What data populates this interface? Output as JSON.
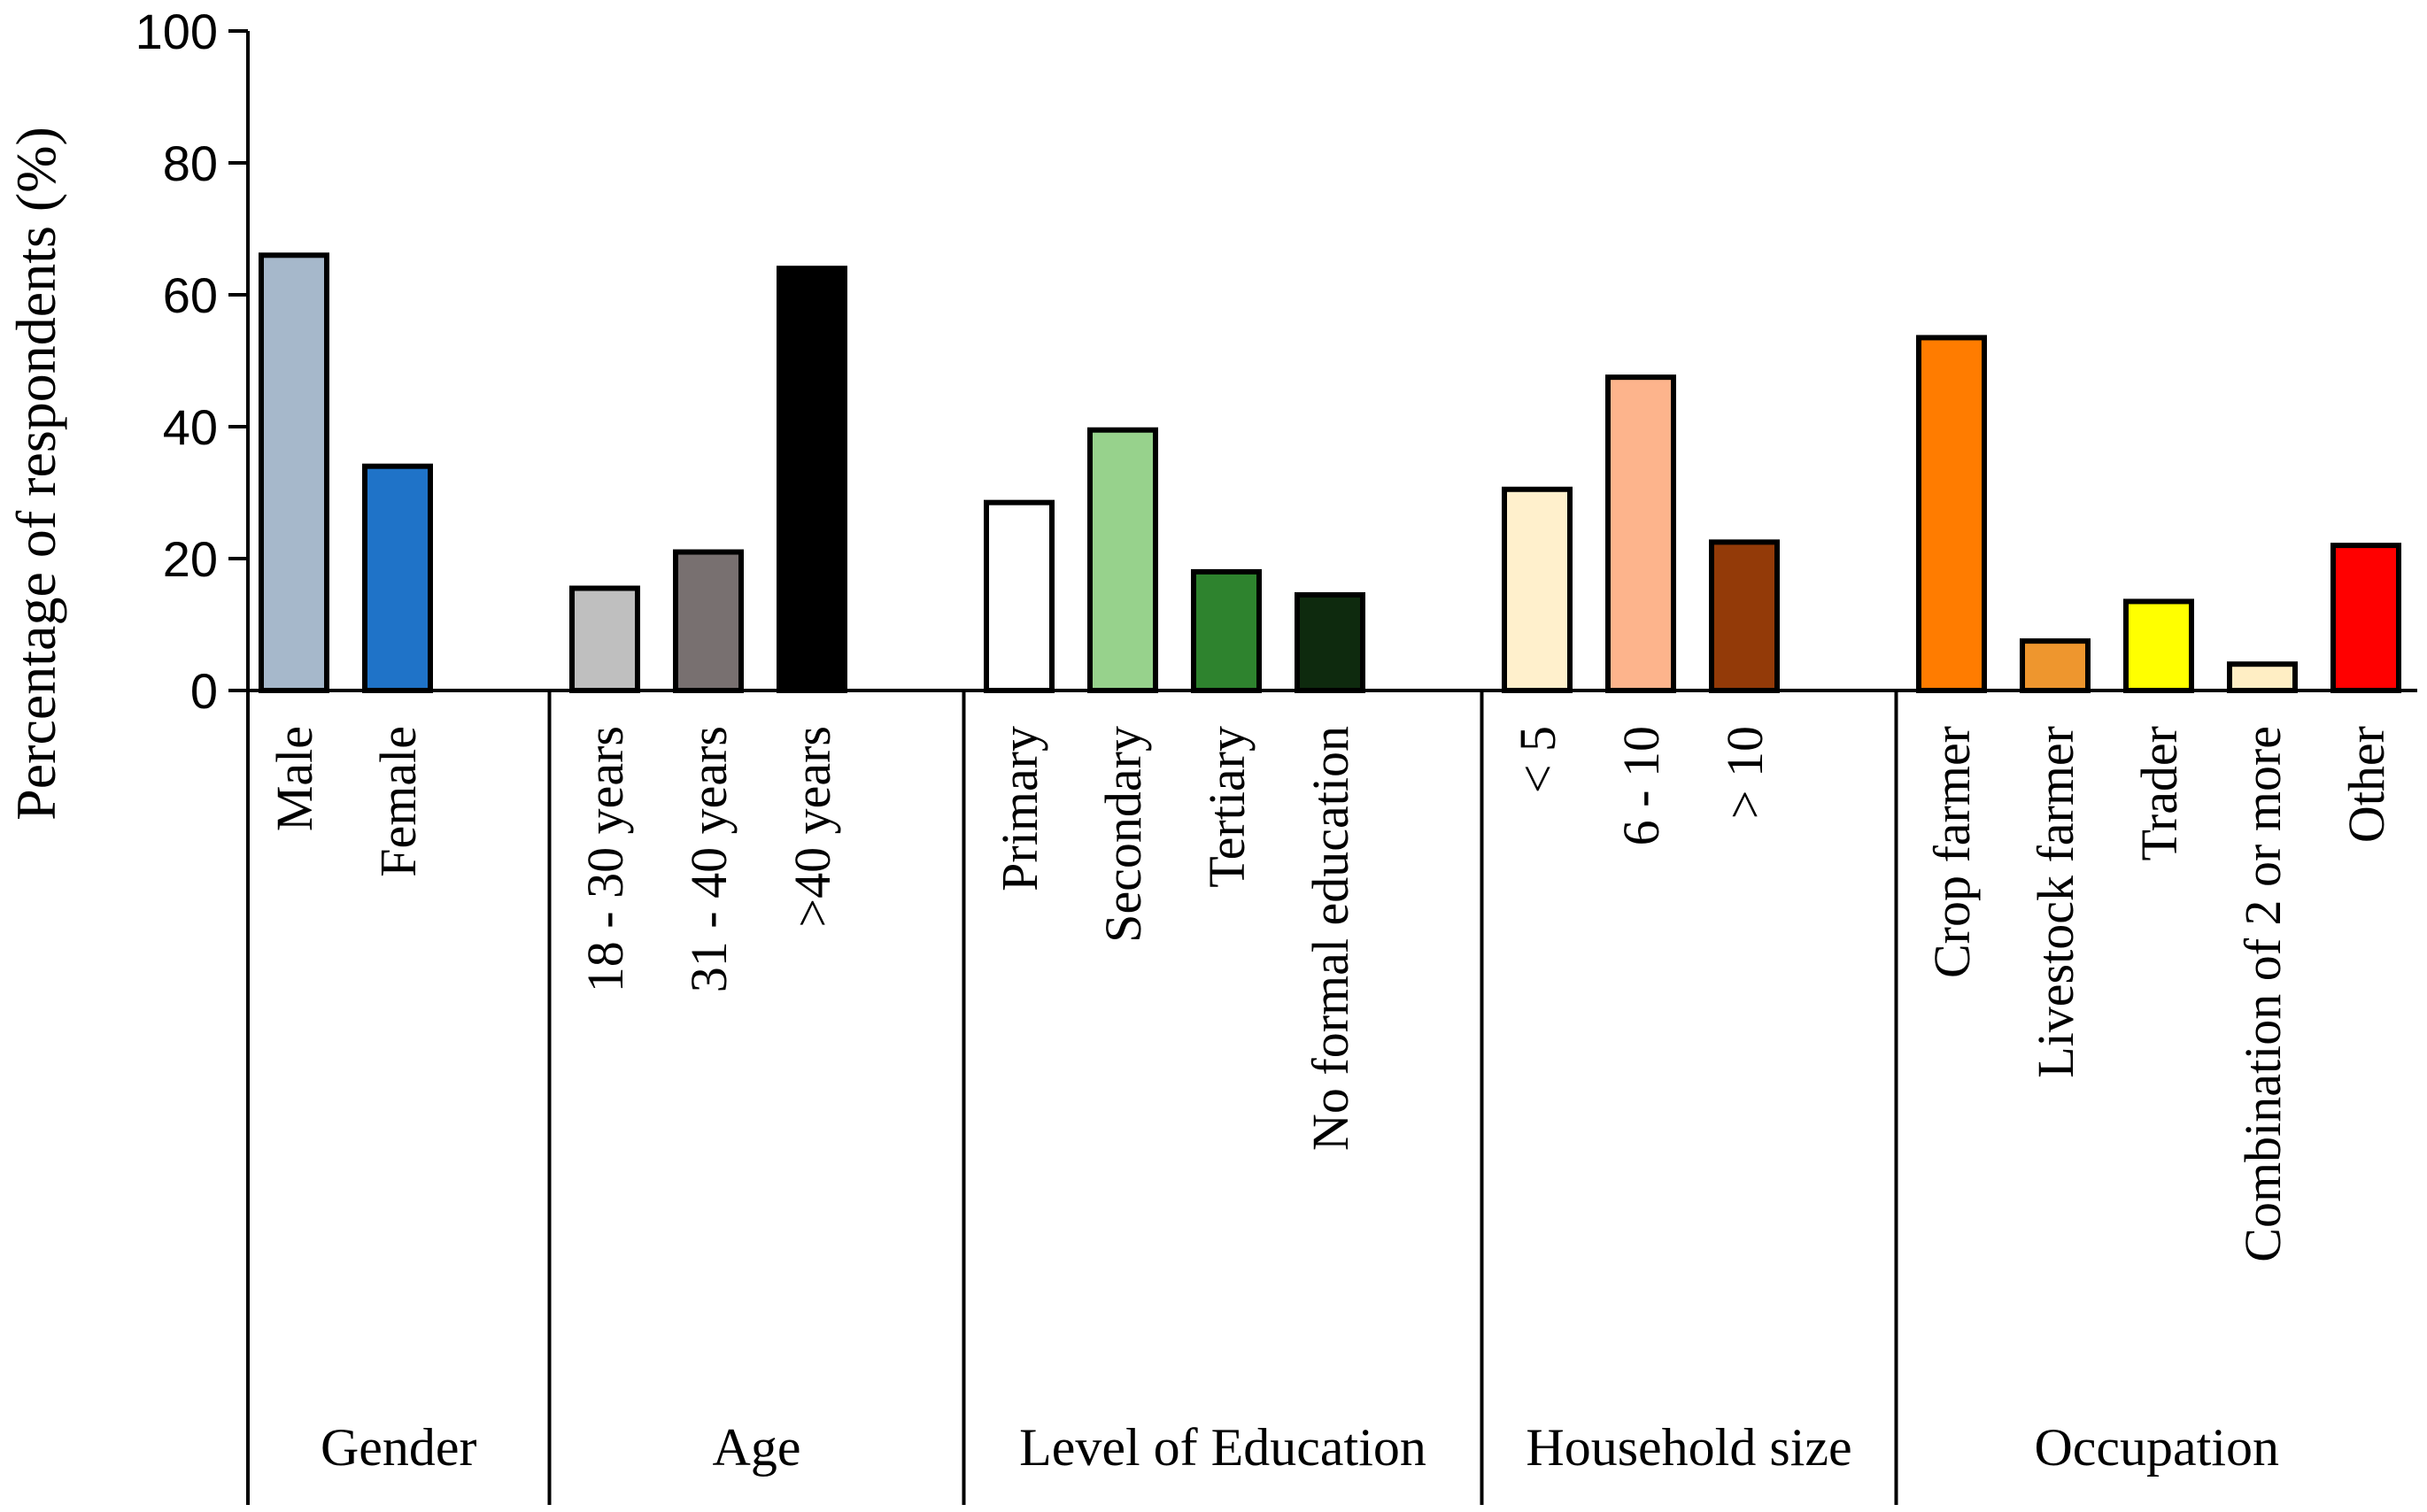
{
  "chart_data": {
    "type": "bar",
    "title": "",
    "xlabel": "",
    "ylabel": "Percentage of respondents (%)",
    "ylim": [
      0,
      100
    ],
    "yticks": [
      0,
      20,
      40,
      60,
      80,
      100
    ],
    "grid": false,
    "legend": "none",
    "groups": [
      {
        "name": "Gender",
        "bars": [
          {
            "label": "Male",
            "value": 66,
            "color": "#a6b8cb"
          },
          {
            "label": "Female",
            "value": 34,
            "color": "#1f73c8"
          }
        ]
      },
      {
        "name": "Age",
        "bars": [
          {
            "label": "18 - 30 years",
            "value": 15.5,
            "color": "#bfbfbf"
          },
          {
            "label": "31 - 40 years",
            "value": 21,
            "color": "#787070"
          },
          {
            "label": ">40 years",
            "value": 64,
            "color": "#000000"
          }
        ]
      },
      {
        "name": "Level of Education",
        "bars": [
          {
            "label": "Primary",
            "value": 28.5,
            "color": "#ffffff"
          },
          {
            "label": "Secondary",
            "value": 39.5,
            "color": "#97d28c"
          },
          {
            "label": "Tertiary",
            "value": 18,
            "color": "#2e832e"
          },
          {
            "label": "No formal education",
            "value": 14.5,
            "color": "#0e2a0e"
          }
        ]
      },
      {
        "name": "Household size",
        "bars": [
          {
            "label": "< 5",
            "value": 30.5,
            "color": "#fff0cc"
          },
          {
            "label": "6  - 10",
            "value": 47.5,
            "color": "#fdb48c"
          },
          {
            "label": "> 10",
            "value": 22.5,
            "color": "#933a08"
          }
        ]
      },
      {
        "name": "Occupation",
        "bars": [
          {
            "label": "Crop farmer",
            "value": 53.5,
            "color": "#ff7c00"
          },
          {
            "label": "Livestock farmer",
            "value": 7.5,
            "color": "#ee962e"
          },
          {
            "label": "Trader",
            "value": 13.5,
            "color": "#ffff00"
          },
          {
            "label": "Combination of 2 or more",
            "value": 4,
            "color": "#ffeec4"
          },
          {
            "label": "Other",
            "value": 22,
            "color": "#ff0000"
          }
        ]
      }
    ]
  }
}
